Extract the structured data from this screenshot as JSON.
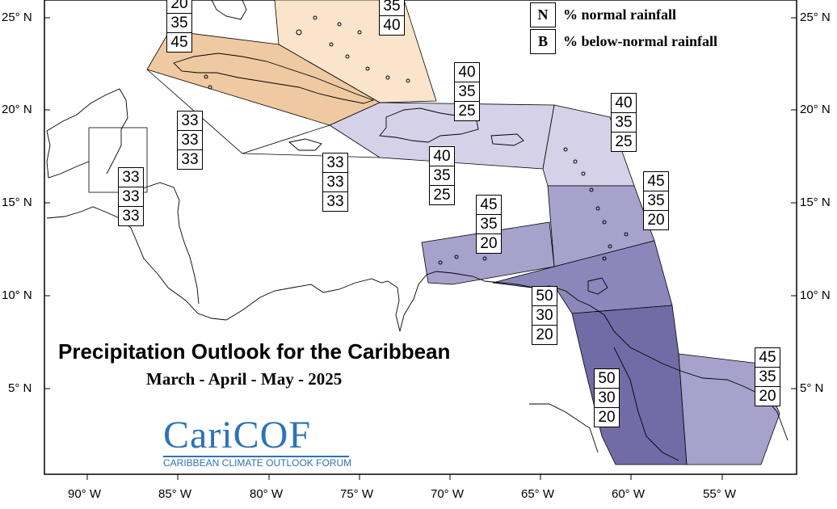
{
  "legend": {
    "items": [
      {
        "key": "N",
        "text": "% normal rainfall"
      },
      {
        "key": "B",
        "text": "% below-normal rainfall"
      }
    ]
  },
  "title": "Precipitation Outlook for the Caribbean",
  "subtitle": "March - April - May - 2025",
  "logo": {
    "main": "CariCOF",
    "sub": "CARIBBEAN CLIMATE OUTLOOK FORUM"
  },
  "axes": {
    "lon_labels": [
      "90° W",
      "85° W",
      "80° W",
      "75° W",
      "70° W",
      "65° W",
      "60° W",
      "55° W"
    ],
    "lat_labels_left": [
      "25° N",
      "20° N",
      "15° N",
      "10° N",
      "5° N"
    ],
    "lat_labels_right": [
      "25° N",
      "20° N",
      "15° N",
      "10° N",
      "5° N"
    ]
  },
  "colors": {
    "light_orange": "#fbe4cc",
    "tan": "#efc9a1",
    "lavender_light": "#d4d1e8",
    "lavender_mid": "#a6a2cc",
    "purple_dark": "#716ca6",
    "purple_mid": "#8b87bb"
  },
  "probabilities": [
    {
      "id": "bahamas-west",
      "values": [
        "20",
        "35",
        "45"
      ]
    },
    {
      "id": "bahamas-east",
      "values": [
        "35",
        "40"
      ]
    },
    {
      "id": "cuba",
      "values": [
        "33",
        "33",
        "33"
      ]
    },
    {
      "id": "belize",
      "values": [
        "33",
        "33",
        "33"
      ]
    },
    {
      "id": "jamaica",
      "values": [
        "33",
        "33",
        "33"
      ]
    },
    {
      "id": "hispaniola",
      "values": [
        "40",
        "35",
        "25"
      ]
    },
    {
      "id": "leeward",
      "values": [
        "40",
        "35",
        "25"
      ]
    },
    {
      "id": "windward",
      "values": [
        "45",
        "35",
        "20"
      ]
    },
    {
      "id": "abc-islands",
      "values": [
        "45",
        "35",
        "20"
      ]
    },
    {
      "id": "trinidad",
      "values": [
        "50",
        "30",
        "20"
      ]
    },
    {
      "id": "guyana",
      "values": [
        "50",
        "30",
        "20"
      ]
    },
    {
      "id": "suriname",
      "values": [
        "45",
        "35",
        "20"
      ]
    }
  ]
}
